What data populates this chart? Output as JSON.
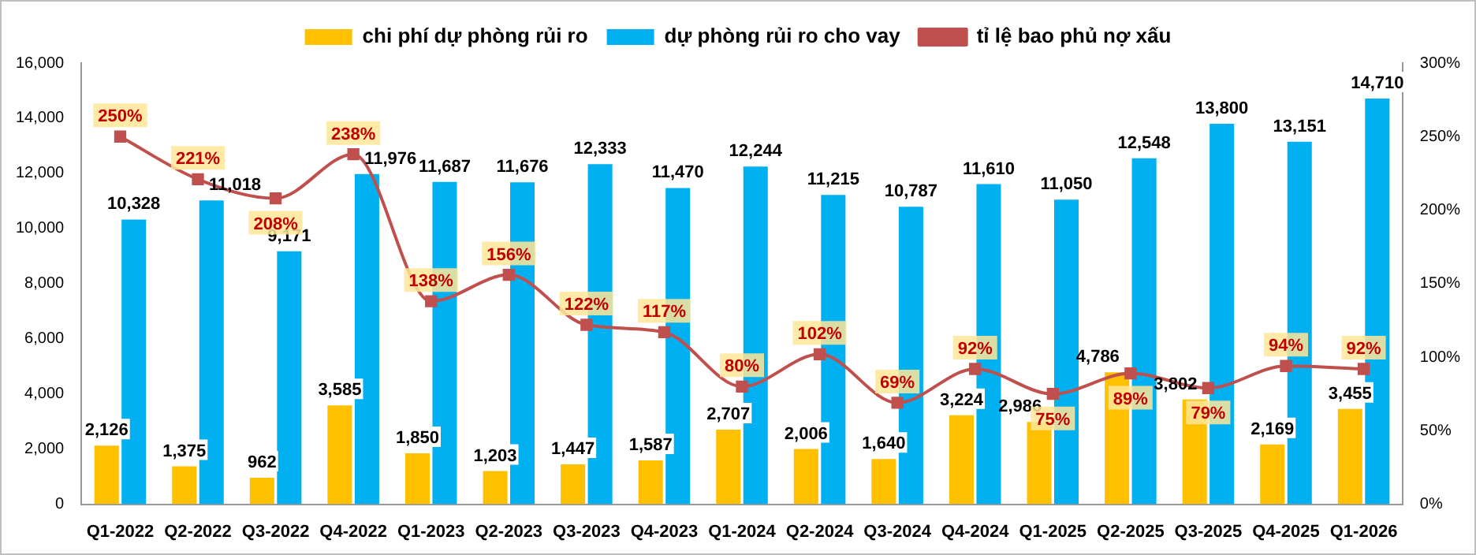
{
  "chart_data": {
    "type": "bar",
    "categories": [
      "Q1-2022",
      "Q2-2022",
      "Q3-2022",
      "Q4-2022",
      "Q1-2023",
      "Q2-2023",
      "Q3-2023",
      "Q4-2023",
      "Q1-2024",
      "Q2-2024",
      "Q3-2024",
      "Q4-2024",
      "Q1-2025",
      "Q2-2025",
      "Q3-2025",
      "Q4-2025",
      "Q1-2026"
    ],
    "series": [
      {
        "name": "chi phí dự phòng rủi ro",
        "color": "#ffc000",
        "values": [
          2126,
          1375,
          962,
          3585,
          1850,
          1203,
          1447,
          1587,
          2707,
          2006,
          1640,
          3224,
          2986,
          4786,
          3802,
          2169,
          3455
        ],
        "value_labels": [
          "2,126",
          "1,375",
          "962",
          "3,585",
          "1,850",
          "1,203",
          "1,447",
          "1,587",
          "2,707",
          "2,006",
          "1,640",
          "3,224",
          "2,986",
          "4,786",
          "3,802",
          "2,169",
          "3,455"
        ]
      },
      {
        "name": "dự phòng rủi ro cho vay",
        "color": "#00b0f0",
        "values": [
          10328,
          11018,
          9171,
          11976,
          11687,
          11676,
          12333,
          11470,
          12244,
          11215,
          10787,
          11610,
          11050,
          12548,
          13800,
          13151,
          14710
        ],
        "value_labels": [
          "10,328",
          "11,018",
          "9,171",
          "11,976",
          "11,687",
          "11,676",
          "12,333",
          "11,470",
          "12,244",
          "11,215",
          "10,787",
          "11,610",
          "11,050",
          "12,548",
          "13,800",
          "13,151",
          "14,710"
        ]
      },
      {
        "name": "tỉ lệ bao phủ nợ xấu",
        "type": "line",
        "axis": "y2",
        "color": "#c0504d",
        "marker": "square",
        "values": [
          250,
          221,
          208,
          238,
          138,
          156,
          122,
          117,
          80,
          102,
          69,
          92,
          75,
          89,
          79,
          94,
          92
        ],
        "value_labels": [
          "250%",
          "221%",
          "208%",
          "238%",
          "138%",
          "156%",
          "122%",
          "117%",
          "80%",
          "102%",
          "69%",
          "92%",
          "75%",
          "89%",
          "79%",
          "94%",
          "92%"
        ]
      }
    ],
    "ylim": [
      0,
      16000
    ],
    "yticks": [
      0,
      {
        "value": 2000,
        "label": "2,000"
      },
      {
        "value": 4000,
        "label": "4,000"
      },
      {
        "value": 6000,
        "label": "6,000"
      },
      {
        "value": 8000,
        "label": "8,000"
      },
      {
        "value": 10000,
        "label": "10,000"
      },
      {
        "value": 12000,
        "label": "12,000"
      },
      {
        "value": 14000,
        "label": "14,000"
      },
      {
        "value": 16000,
        "label": "16,000"
      }
    ],
    "y2lim": [
      0,
      300
    ],
    "y2ticks": [
      {
        "value": 0,
        "label": "0%"
      },
      {
        "value": 50,
        "label": "50%"
      },
      {
        "value": 100,
        "label": "100%"
      },
      {
        "value": 150,
        "label": "150%"
      },
      {
        "value": 200,
        "label": "200%"
      },
      {
        "value": 250,
        "label": "250%"
      },
      {
        "value": 300,
        "label": "300%"
      }
    ],
    "legend": "top",
    "grid": false
  }
}
